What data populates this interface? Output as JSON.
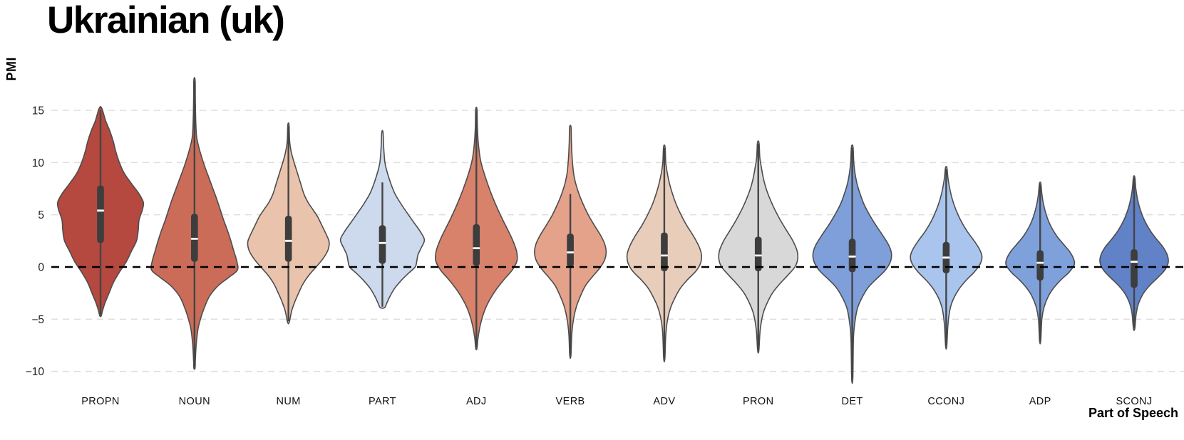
{
  "title": "Ukrainian (uk)",
  "y_axis": {
    "label": "PMI"
  },
  "x_axis": {
    "label": "Part of Speech"
  },
  "style": {
    "background": "#ffffff",
    "grid_color": "#dedede",
    "zero_line_color": "#000000",
    "outline_color": "#4d4d4d",
    "whisker_color": "#454545",
    "box_color": "#3d3d3d",
    "median_color": "#ffffff",
    "tick_color": "#222222",
    "category_color": "#111111"
  },
  "chart_data": {
    "type": "violin",
    "title": "Ukrainian (uk)",
    "xlabel": "Part of Speech",
    "ylabel": "PMI",
    "ylim": [
      -12.5,
      19.5
    ],
    "grid": "horizontal dashed",
    "legend": "none",
    "zero_reference_line": 0,
    "yticks": [
      {
        "value": 15,
        "label": "15"
      },
      {
        "value": 10,
        "label": "10"
      },
      {
        "value": 5,
        "label": "5"
      },
      {
        "value": 0,
        "label": "0"
      },
      {
        "value": -5,
        "label": "−5"
      },
      {
        "value": -10,
        "label": "−10"
      }
    ],
    "categories": [
      "PROPN",
      "NOUN",
      "NUM",
      "PART",
      "ADJ",
      "VERB",
      "ADV",
      "PRON",
      "DET",
      "CCONJ",
      "ADP",
      "SCONJ"
    ],
    "series": [
      {
        "name": "PROPN",
        "color": "#b5483f",
        "range": [
          -4.7,
          15.2
        ],
        "whiskers": [
          -4.6,
          15.0
        ],
        "box": [
          2.3,
          7.8
        ],
        "median": 5.4,
        "rel_width": 0.97,
        "profile": [
          [
            15.2,
            0.03
          ],
          [
            14,
            0.12
          ],
          [
            13,
            0.22
          ],
          [
            12,
            0.3
          ],
          [
            11,
            0.36
          ],
          [
            10,
            0.44
          ],
          [
            9,
            0.55
          ],
          [
            8,
            0.72
          ],
          [
            7,
            0.9
          ],
          [
            6.2,
            1.0
          ],
          [
            5.5,
            0.98
          ],
          [
            4.5,
            0.9
          ],
          [
            3.5,
            0.88
          ],
          [
            2.5,
            0.84
          ],
          [
            1.5,
            0.72
          ],
          [
            0.5,
            0.6
          ],
          [
            -0.5,
            0.44
          ],
          [
            -1.5,
            0.3
          ],
          [
            -2.5,
            0.2
          ],
          [
            -3.5,
            0.1
          ],
          [
            -4.3,
            0.04
          ],
          [
            -4.7,
            0.015
          ]
        ]
      },
      {
        "name": "NOUN",
        "color": "#cb6c59",
        "range": [
          -9.7,
          17.9
        ],
        "whiskers": [
          -9.6,
          17.8
        ],
        "box": [
          0.5,
          5.1
        ],
        "median": 2.7,
        "rel_width": 0.97,
        "profile": [
          [
            17.9,
            0.015
          ],
          [
            16,
            0.02
          ],
          [
            14,
            0.03
          ],
          [
            12.5,
            0.05
          ],
          [
            11.5,
            0.1
          ],
          [
            10.5,
            0.17
          ],
          [
            9.5,
            0.25
          ],
          [
            8.5,
            0.34
          ],
          [
            7.5,
            0.43
          ],
          [
            6.5,
            0.52
          ],
          [
            5.5,
            0.6
          ],
          [
            4.5,
            0.68
          ],
          [
            3.5,
            0.77
          ],
          [
            2.5,
            0.85
          ],
          [
            1.5,
            0.92
          ],
          [
            0.5,
            0.99
          ],
          [
            -0.3,
            1.0
          ],
          [
            -1,
            0.8
          ],
          [
            -1.8,
            0.55
          ],
          [
            -2.8,
            0.35
          ],
          [
            -4,
            0.22
          ],
          [
            -5,
            0.14
          ],
          [
            -6,
            0.08
          ],
          [
            -7.5,
            0.04
          ],
          [
            -9,
            0.02
          ],
          [
            -9.7,
            0.01
          ]
        ]
      },
      {
        "name": "NUM",
        "color": "#eac3ad",
        "range": [
          -5.3,
          13.6
        ],
        "whiskers": [
          -5.2,
          13.5
        ],
        "box": [
          0.5,
          4.9
        ],
        "median": 2.5,
        "rel_width": 0.92,
        "profile": [
          [
            13.6,
            0.015
          ],
          [
            12,
            0.03
          ],
          [
            11,
            0.07
          ],
          [
            10,
            0.14
          ],
          [
            9,
            0.22
          ],
          [
            8,
            0.3
          ],
          [
            7,
            0.38
          ],
          [
            6.2,
            0.48
          ],
          [
            5.5,
            0.6
          ],
          [
            4.8,
            0.72
          ],
          [
            4,
            0.82
          ],
          [
            3.2,
            0.92
          ],
          [
            2.4,
            1.0
          ],
          [
            1.6,
            0.97
          ],
          [
            0.8,
            0.85
          ],
          [
            0,
            0.68
          ],
          [
            -0.8,
            0.5
          ],
          [
            -1.6,
            0.36
          ],
          [
            -2.5,
            0.25
          ],
          [
            -3.3,
            0.16
          ],
          [
            -4.2,
            0.08
          ],
          [
            -5.3,
            0.02
          ]
        ]
      },
      {
        "name": "PART",
        "color": "#cdd9ec",
        "range": [
          -3.9,
          12.9
        ],
        "whiskers": [
          -3.8,
          8.1
        ],
        "box": [
          0.3,
          4.0
        ],
        "median": 2.3,
        "rel_width": 0.95,
        "profile": [
          [
            12.9,
            0.015
          ],
          [
            11.5,
            0.03
          ],
          [
            10,
            0.06
          ],
          [
            9,
            0.12
          ],
          [
            8,
            0.2
          ],
          [
            7,
            0.3
          ],
          [
            6,
            0.45
          ],
          [
            5,
            0.62
          ],
          [
            4.2,
            0.76
          ],
          [
            3.4,
            0.9
          ],
          [
            2.6,
            1.0
          ],
          [
            1.8,
            0.92
          ],
          [
            1.2,
            0.85
          ],
          [
            0.6,
            0.82
          ],
          [
            0,
            0.78
          ],
          [
            -0.6,
            0.62
          ],
          [
            -1.2,
            0.47
          ],
          [
            -2,
            0.3
          ],
          [
            -2.8,
            0.18
          ],
          [
            -3.5,
            0.1
          ],
          [
            -3.9,
            0.05
          ]
        ]
      },
      {
        "name": "ADJ",
        "color": "#d8826b",
        "range": [
          -7.8,
          15.1
        ],
        "whiskers": [
          -7.7,
          15.0
        ],
        "box": [
          0.1,
          4.1
        ],
        "median": 1.8,
        "rel_width": 0.92,
        "profile": [
          [
            15.1,
            0.015
          ],
          [
            13.5,
            0.025
          ],
          [
            12,
            0.045
          ],
          [
            10.5,
            0.09
          ],
          [
            9.5,
            0.15
          ],
          [
            8.5,
            0.23
          ],
          [
            7.5,
            0.32
          ],
          [
            6.5,
            0.42
          ],
          [
            5.5,
            0.53
          ],
          [
            4.5,
            0.65
          ],
          [
            3.5,
            0.78
          ],
          [
            2.5,
            0.9
          ],
          [
            1.5,
            0.99
          ],
          [
            0.6,
            1.0
          ],
          [
            -0.3,
            0.88
          ],
          [
            -1.2,
            0.68
          ],
          [
            -2.2,
            0.48
          ],
          [
            -3.2,
            0.32
          ],
          [
            -4.2,
            0.2
          ],
          [
            -5.5,
            0.1
          ],
          [
            -6.8,
            0.04
          ],
          [
            -7.8,
            0.015
          ]
        ]
      },
      {
        "name": "VERB",
        "color": "#e4a28b",
        "range": [
          -8.5,
          13.4
        ],
        "whiskers": [
          -8.4,
          7.0
        ],
        "box": [
          0.0,
          3.2
        ],
        "median": 1.4,
        "rel_width": 0.81,
        "profile": [
          [
            13.4,
            0.02
          ],
          [
            12,
            0.03
          ],
          [
            10.5,
            0.05
          ],
          [
            9,
            0.09
          ],
          [
            8,
            0.15
          ],
          [
            7,
            0.24
          ],
          [
            6,
            0.36
          ],
          [
            5,
            0.5
          ],
          [
            4,
            0.67
          ],
          [
            3,
            0.85
          ],
          [
            2.2,
            0.96
          ],
          [
            1.4,
            1.0
          ],
          [
            0.6,
            0.95
          ],
          [
            -0.2,
            0.8
          ],
          [
            -1,
            0.6
          ],
          [
            -1.8,
            0.42
          ],
          [
            -2.8,
            0.28
          ],
          [
            -3.8,
            0.17
          ],
          [
            -5,
            0.09
          ],
          [
            -6.5,
            0.04
          ],
          [
            -8.5,
            0.015
          ]
        ]
      },
      {
        "name": "ADV",
        "color": "#e9cdbb",
        "range": [
          -8.8,
          11.5
        ],
        "whiskers": [
          -8.7,
          11.4
        ],
        "box": [
          -0.4,
          3.3
        ],
        "median": 1.1,
        "rel_width": 0.84,
        "profile": [
          [
            11.5,
            0.02
          ],
          [
            10,
            0.04
          ],
          [
            9,
            0.08
          ],
          [
            8,
            0.14
          ],
          [
            7,
            0.22
          ],
          [
            6,
            0.32
          ],
          [
            5,
            0.45
          ],
          [
            4,
            0.6
          ],
          [
            3,
            0.78
          ],
          [
            2,
            0.93
          ],
          [
            1.2,
            1.0
          ],
          [
            0.4,
            0.98
          ],
          [
            -0.4,
            0.85
          ],
          [
            -1.2,
            0.63
          ],
          [
            -2,
            0.44
          ],
          [
            -3,
            0.28
          ],
          [
            -4,
            0.16
          ],
          [
            -5.2,
            0.08
          ],
          [
            -6.5,
            0.04
          ],
          [
            -8.8,
            0.015
          ]
        ]
      },
      {
        "name": "PRON",
        "color": "#d7d8d7",
        "range": [
          -8.0,
          11.9
        ],
        "whiskers": [
          -7.9,
          11.8
        ],
        "box": [
          -0.4,
          2.9
        ],
        "median": 1.1,
        "rel_width": 0.89,
        "profile": [
          [
            11.9,
            0.02
          ],
          [
            10.5,
            0.04
          ],
          [
            9.5,
            0.08
          ],
          [
            8.5,
            0.13
          ],
          [
            7.5,
            0.2
          ],
          [
            6.5,
            0.3
          ],
          [
            5.5,
            0.42
          ],
          [
            4.5,
            0.56
          ],
          [
            3.5,
            0.72
          ],
          [
            2.5,
            0.88
          ],
          [
            1.5,
            0.99
          ],
          [
            0.7,
            1.0
          ],
          [
            0,
            0.93
          ],
          [
            -0.8,
            0.75
          ],
          [
            -1.6,
            0.55
          ],
          [
            -2.5,
            0.36
          ],
          [
            -3.5,
            0.22
          ],
          [
            -4.5,
            0.12
          ],
          [
            -6,
            0.05
          ],
          [
            -8,
            0.015
          ]
        ]
      },
      {
        "name": "DET",
        "color": "#7e9fd9",
        "range": [
          -10.7,
          11.5
        ],
        "whiskers": [
          -10.6,
          11.4
        ],
        "box": [
          -0.5,
          2.7
        ],
        "median": 1.0,
        "rel_width": 0.89,
        "profile": [
          [
            11.5,
            0.02
          ],
          [
            10,
            0.04
          ],
          [
            9,
            0.07
          ],
          [
            8,
            0.12
          ],
          [
            7,
            0.2
          ],
          [
            6,
            0.3
          ],
          [
            5,
            0.44
          ],
          [
            4,
            0.6
          ],
          [
            3,
            0.78
          ],
          [
            2,
            0.94
          ],
          [
            1.2,
            1.0
          ],
          [
            0.4,
            0.96
          ],
          [
            -0.4,
            0.82
          ],
          [
            -1.2,
            0.6
          ],
          [
            -2,
            0.4
          ],
          [
            -3,
            0.24
          ],
          [
            -4,
            0.13
          ],
          [
            -5.5,
            0.06
          ],
          [
            -7,
            0.03
          ],
          [
            -10.7,
            0.012
          ]
        ]
      },
      {
        "name": "CCONJ",
        "color": "#a9c5ed",
        "range": [
          -7.6,
          9.5
        ],
        "whiskers": [
          -7.5,
          9.4
        ],
        "box": [
          -0.6,
          2.4
        ],
        "median": 0.9,
        "rel_width": 0.81,
        "profile": [
          [
            9.5,
            0.02
          ],
          [
            8.5,
            0.05
          ],
          [
            7.5,
            0.1
          ],
          [
            6.5,
            0.17
          ],
          [
            5.5,
            0.27
          ],
          [
            4.5,
            0.4
          ],
          [
            3.5,
            0.57
          ],
          [
            2.5,
            0.78
          ],
          [
            1.7,
            0.93
          ],
          [
            1,
            1.0
          ],
          [
            0.3,
            0.95
          ],
          [
            -0.5,
            0.78
          ],
          [
            -1.3,
            0.55
          ],
          [
            -2.1,
            0.36
          ],
          [
            -3,
            0.21
          ],
          [
            -4,
            0.11
          ],
          [
            -5.5,
            0.05
          ],
          [
            -7.6,
            0.015
          ]
        ]
      },
      {
        "name": "ADP",
        "color": "#7ea1dc",
        "range": [
          -7.1,
          8.0
        ],
        "whiskers": [
          -7.0,
          7.9
        ],
        "box": [
          -1.3,
          1.6
        ],
        "median": 0.4,
        "rel_width": 0.77,
        "profile": [
          [
            8,
            0.02
          ],
          [
            7,
            0.05
          ],
          [
            6,
            0.1
          ],
          [
            5,
            0.18
          ],
          [
            4,
            0.3
          ],
          [
            3,
            0.48
          ],
          [
            2.2,
            0.68
          ],
          [
            1.5,
            0.86
          ],
          [
            0.8,
            0.98
          ],
          [
            0.2,
            1.0
          ],
          [
            -0.5,
            0.85
          ],
          [
            -1.2,
            0.62
          ],
          [
            -2,
            0.4
          ],
          [
            -2.8,
            0.24
          ],
          [
            -3.8,
            0.12
          ],
          [
            -5,
            0.05
          ],
          [
            -7.1,
            0.015
          ]
        ]
      },
      {
        "name": "SCONJ",
        "color": "#6282c8",
        "range": [
          -5.9,
          8.6
        ],
        "whiskers": [
          -5.8,
          8.5
        ],
        "box": [
          -2.0,
          1.7
        ],
        "median": 0.5,
        "rel_width": 0.77,
        "profile": [
          [
            8.6,
            0.02
          ],
          [
            7.5,
            0.05
          ],
          [
            6.5,
            0.1
          ],
          [
            5.5,
            0.18
          ],
          [
            4.5,
            0.3
          ],
          [
            3.5,
            0.47
          ],
          [
            2.7,
            0.65
          ],
          [
            1.9,
            0.85
          ],
          [
            1.1,
            0.98
          ],
          [
            0.4,
            1.0
          ],
          [
            -0.3,
            0.9
          ],
          [
            -1,
            0.7
          ],
          [
            -1.8,
            0.45
          ],
          [
            -2.6,
            0.26
          ],
          [
            -3.5,
            0.13
          ],
          [
            -4.5,
            0.06
          ],
          [
            -5.9,
            0.02
          ]
        ]
      }
    ]
  }
}
